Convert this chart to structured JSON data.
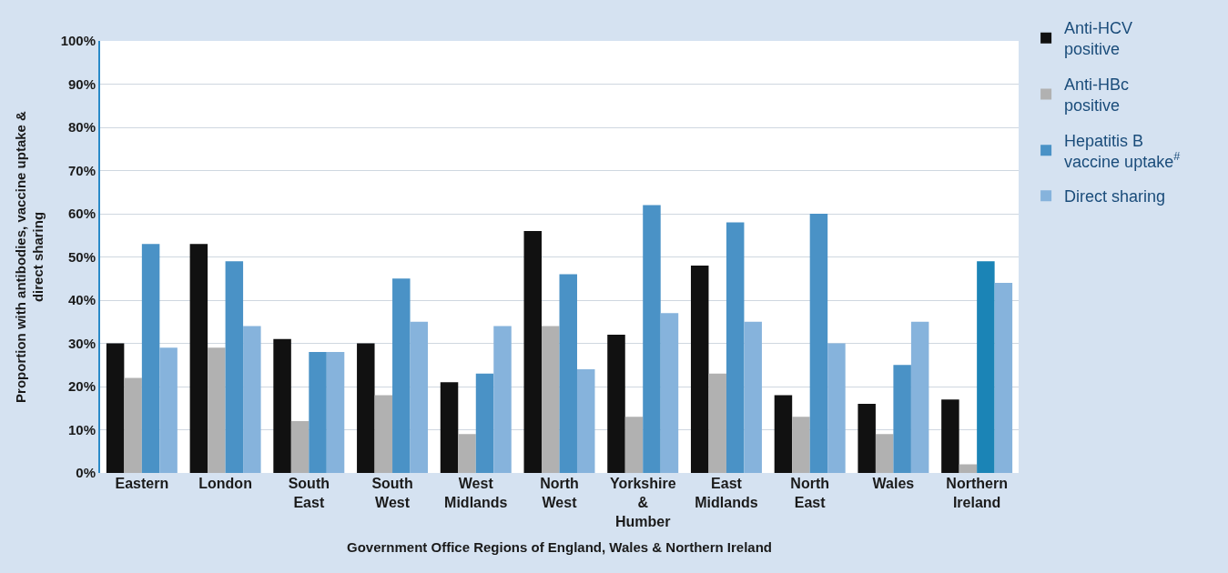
{
  "chart_data": {
    "type": "bar",
    "xlabel": "Government Office Regions of England, Wales & Northern Ireland",
    "ylabel": "Proportion with antibodies, vaccine uptake &\ndirect sharing",
    "categories": [
      "Eastern",
      "London",
      "South\nEast",
      "South\nWest",
      "West\nMidlands",
      "North\nWest",
      "Yorkshire\n&\nHumber",
      "East\nMidlands",
      "North\nEast",
      "Wales",
      "Northern\nIreland"
    ],
    "series": [
      {
        "name": "Anti-HCV\npositive",
        "color": "#111111",
        "values": [
          30,
          53,
          31,
          30,
          21,
          56,
          32,
          48,
          18,
          16,
          17
        ]
      },
      {
        "name": "Anti-HBc\npositive",
        "color": "#b1b1b1",
        "values": [
          22,
          29,
          12,
          18,
          9,
          34,
          13,
          23,
          13,
          9,
          2
        ]
      },
      {
        "name": "Hepatitis B\nvaccine uptake$^{#}$",
        "color": "#4a92c6",
        "colors": [
          "#4a92c6",
          "#4a92c6",
          "#4a92c6",
          "#4a92c6",
          "#4a92c6",
          "#4a92c6",
          "#4a92c6",
          "#4a92c6",
          "#4a92c6",
          "#4a92c6",
          "#1b84b6"
        ],
        "values": [
          53,
          49,
          28,
          45,
          23,
          46,
          62,
          58,
          60,
          25,
          49
        ]
      },
      {
        "name": "Direct sharing",
        "color": "#86b3dc",
        "values": [
          29,
          34,
          28,
          35,
          34,
          24,
          37,
          35,
          30,
          35,
          44
        ]
      }
    ],
    "ylim": [
      0,
      100
    ],
    "yticks": [
      {
        "value": 0,
        "label": "0%"
      },
      {
        "value": 10,
        "label": "10%"
      },
      {
        "value": 20,
        "label": "20%"
      },
      {
        "value": 30,
        "label": "30%"
      },
      {
        "value": 40,
        "label": "40%"
      },
      {
        "value": 50,
        "label": "50%"
      },
      {
        "value": 60,
        "label": "60%"
      },
      {
        "value": 70,
        "label": "70%"
      },
      {
        "value": 80,
        "label": "80%"
      },
      {
        "value": 90,
        "label": "90%"
      },
      {
        "value": 100,
        "label": "100%"
      }
    ],
    "grid": "y",
    "legend": "top right"
  }
}
